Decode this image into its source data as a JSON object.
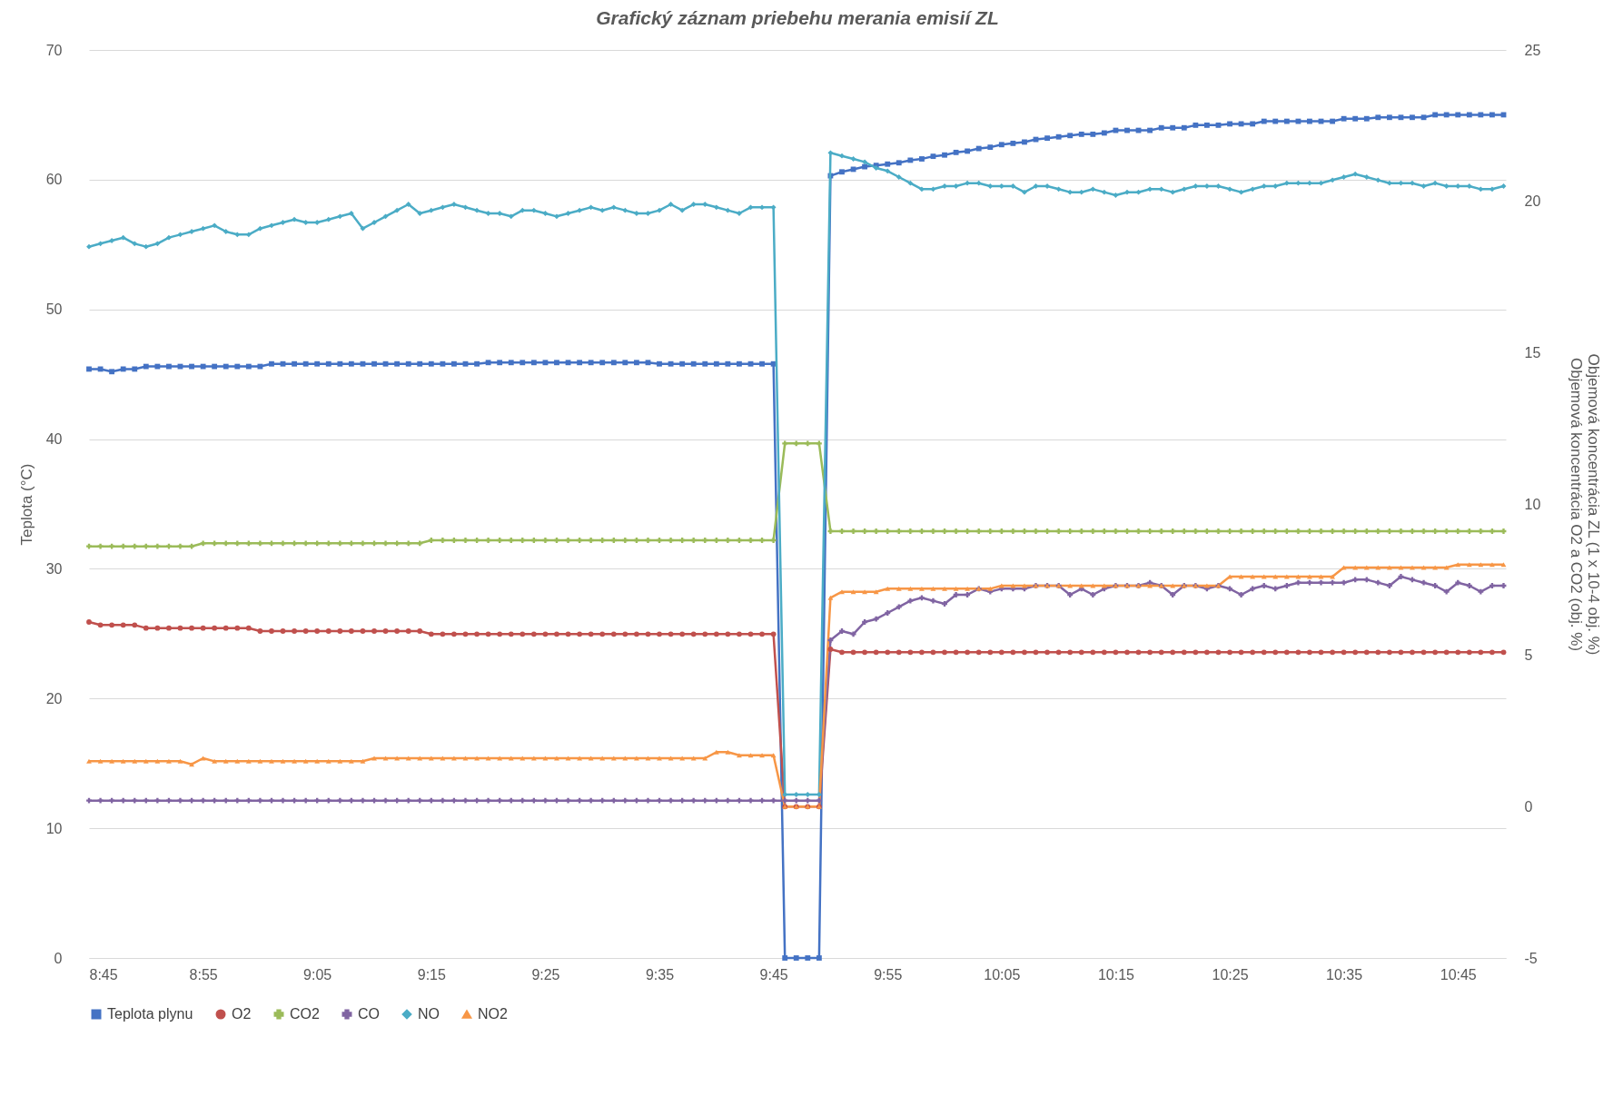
{
  "chart_data": {
    "type": "line",
    "title": "Grafický záznam priebehu merania  emisií ZL",
    "ylabel": "Teplota (°C)",
    "y2label": "Objemová koncentrácia ZL (1 x 10-4 obj. %)\nObjemová koncentrácia  O2 a CO2 (obj. %)",
    "x": [
      8.75,
      8.7667,
      8.7833,
      8.8,
      8.8167,
      8.8333,
      8.85,
      8.8667,
      8.8833,
      8.9,
      8.9167,
      8.9333,
      8.95,
      8.9667,
      8.9833,
      9,
      9.0167,
      9.0333,
      9.05,
      9.0667,
      9.0833,
      9.1,
      9.1167,
      9.1333,
      9.15,
      9.1667,
      9.1833,
      9.2,
      9.2167,
      9.2333,
      9.25,
      9.2667,
      9.2833,
      9.3,
      9.3167,
      9.3333,
      9.35,
      9.3667,
      9.3833,
      9.4,
      9.4167,
      9.4333,
      9.45,
      9.4667,
      9.4833,
      9.5,
      9.5167,
      9.5333,
      9.55,
      9.5667,
      9.5833,
      9.6,
      9.6167,
      9.6333,
      9.65,
      9.6667,
      9.6833,
      9.7,
      9.7167,
      9.7333,
      9.75,
      9.7667,
      9.7833,
      9.8,
      9.8167,
      9.8333,
      9.85,
      9.8667,
      9.8833,
      9.9,
      9.9167,
      9.9333,
      9.95,
      9.9667,
      9.9833,
      10,
      10.0167,
      10.0333,
      10.05,
      10.0667,
      10.0833,
      10.1,
      10.1167,
      10.1333,
      10.15,
      10.1667,
      10.1833,
      10.2,
      10.2167,
      10.2333,
      10.25,
      10.2667,
      10.2833,
      10.3,
      10.3167,
      10.3333,
      10.35,
      10.3667,
      10.3833,
      10.4,
      10.4167,
      10.4333,
      10.45,
      10.4667,
      10.4833,
      10.5,
      10.5167,
      10.5333,
      10.55,
      10.5667,
      10.5833,
      10.6,
      10.6167,
      10.6333,
      10.65,
      10.6667,
      10.6833,
      10.7,
      10.7167,
      10.7333,
      10.75,
      10.7667,
      10.7833,
      10.8,
      10.8167
    ],
    "xlim": [
      8.75,
      10.82
    ],
    "xticks": [
      {
        "value": 8.75,
        "label": "8:45"
      },
      {
        "value": 8.9167,
        "label": "8:55"
      },
      {
        "value": 9.0833,
        "label": "9:05"
      },
      {
        "value": 9.25,
        "label": "9:15"
      },
      {
        "value": 9.4167,
        "label": "9:25"
      },
      {
        "value": 9.5833,
        "label": "9:35"
      },
      {
        "value": 9.75,
        "label": "9:45"
      },
      {
        "value": 9.9167,
        "label": "9:55"
      },
      {
        "value": 10.0833,
        "label": "10:05"
      },
      {
        "value": 10.25,
        "label": "10:15"
      },
      {
        "value": 10.4167,
        "label": "10:25"
      },
      {
        "value": 10.5833,
        "label": "10:35"
      },
      {
        "value": 10.75,
        "label": "10:45"
      }
    ],
    "ylim": [
      0,
      70
    ],
    "yticks": [
      0,
      10,
      20,
      30,
      40,
      50,
      60,
      70
    ],
    "y2lim": [
      -5,
      25
    ],
    "y2ticks": [
      -5,
      0,
      5,
      10,
      15,
      20,
      25
    ],
    "grid": "y",
    "legend": "bottom",
    "series": [
      {
        "name": "Teplota plynu",
        "color": "#4472c4",
        "marker": "square",
        "values": [
          45.4,
          45.4,
          45.2,
          45.4,
          45.4,
          45.6,
          45.6,
          45.6,
          45.6,
          45.6,
          45.6,
          45.6,
          45.6,
          45.6,
          45.6,
          45.6,
          45.8,
          45.8,
          45.8,
          45.8,
          45.8,
          45.8,
          45.8,
          45.8,
          45.8,
          45.8,
          45.8,
          45.8,
          45.8,
          45.8,
          45.8,
          45.8,
          45.8,
          45.8,
          45.8,
          45.9,
          45.9,
          45.9,
          45.9,
          45.9,
          45.9,
          45.9,
          45.9,
          45.9,
          45.9,
          45.9,
          45.9,
          45.9,
          45.9,
          45.9,
          45.8,
          45.8,
          45.8,
          45.8,
          45.8,
          45.8,
          45.8,
          45.8,
          45.8,
          45.8,
          45.8,
          0,
          0,
          0,
          0,
          60.3,
          60.6,
          60.8,
          61.0,
          61.1,
          61.2,
          61.3,
          61.5,
          61.6,
          61.8,
          61.9,
          62.1,
          62.2,
          62.4,
          62.5,
          62.7,
          62.8,
          62.9,
          63.1,
          63.2,
          63.3,
          63.4,
          63.5,
          63.5,
          63.6,
          63.8,
          63.8,
          63.8,
          63.8,
          64.0,
          64.0,
          64.0,
          64.2,
          64.2,
          64.2,
          64.3,
          64.3,
          64.3,
          64.5,
          64.5,
          64.5,
          64.5,
          64.5,
          64.5,
          64.5,
          64.7,
          64.7,
          64.7,
          64.8,
          64.8,
          64.8,
          64.8,
          64.8,
          65.0,
          65.0,
          65.0,
          65.0,
          65.0,
          65.0,
          65.0
        ]
      },
      {
        "name": "O2",
        "color": "#c0504d",
        "marker": "circle",
        "axis": "y2",
        "values": [
          6.1,
          6.0,
          6.0,
          6.0,
          6.0,
          5.9,
          5.9,
          5.9,
          5.9,
          5.9,
          5.9,
          5.9,
          5.9,
          5.9,
          5.9,
          5.8,
          5.8,
          5.8,
          5.8,
          5.8,
          5.8,
          5.8,
          5.8,
          5.8,
          5.8,
          5.8,
          5.8,
          5.8,
          5.8,
          5.8,
          5.7,
          5.7,
          5.7,
          5.7,
          5.7,
          5.7,
          5.7,
          5.7,
          5.7,
          5.7,
          5.7,
          5.7,
          5.7,
          5.7,
          5.7,
          5.7,
          5.7,
          5.7,
          5.7,
          5.7,
          5.7,
          5.7,
          5.7,
          5.7,
          5.7,
          5.7,
          5.7,
          5.7,
          5.7,
          5.7,
          5.7,
          0,
          0,
          0,
          0,
          5.2,
          5.1,
          5.1,
          5.1,
          5.1,
          5.1,
          5.1,
          5.1,
          5.1,
          5.1,
          5.1,
          5.1,
          5.1,
          5.1,
          5.1,
          5.1,
          5.1,
          5.1,
          5.1,
          5.1,
          5.1,
          5.1,
          5.1,
          5.1,
          5.1,
          5.1,
          5.1,
          5.1,
          5.1,
          5.1,
          5.1,
          5.1,
          5.1,
          5.1,
          5.1,
          5.1,
          5.1,
          5.1,
          5.1,
          5.1,
          5.1,
          5.1,
          5.1,
          5.1,
          5.1,
          5.1,
          5.1,
          5.1,
          5.1,
          5.1,
          5.1,
          5.1,
          5.1,
          5.1,
          5.1,
          5.1,
          5.1,
          5.1,
          5.1,
          5.1
        ]
      },
      {
        "name": "CO2",
        "color": "#9bbb59",
        "marker": "cross",
        "axis": "y2",
        "values": [
          8.6,
          8.6,
          8.6,
          8.6,
          8.6,
          8.6,
          8.6,
          8.6,
          8.6,
          8.6,
          8.7,
          8.7,
          8.7,
          8.7,
          8.7,
          8.7,
          8.7,
          8.7,
          8.7,
          8.7,
          8.7,
          8.7,
          8.7,
          8.7,
          8.7,
          8.7,
          8.7,
          8.7,
          8.7,
          8.7,
          8.8,
          8.8,
          8.8,
          8.8,
          8.8,
          8.8,
          8.8,
          8.8,
          8.8,
          8.8,
          8.8,
          8.8,
          8.8,
          8.8,
          8.8,
          8.8,
          8.8,
          8.8,
          8.8,
          8.8,
          8.8,
          8.8,
          8.8,
          8.8,
          8.8,
          8.8,
          8.8,
          8.8,
          8.8,
          8.8,
          8.8,
          12.0,
          12.0,
          12.0,
          12.0,
          9.1,
          9.1,
          9.1,
          9.1,
          9.1,
          9.1,
          9.1,
          9.1,
          9.1,
          9.1,
          9.1,
          9.1,
          9.1,
          9.1,
          9.1,
          9.1,
          9.1,
          9.1,
          9.1,
          9.1,
          9.1,
          9.1,
          9.1,
          9.1,
          9.1,
          9.1,
          9.1,
          9.1,
          9.1,
          9.1,
          9.1,
          9.1,
          9.1,
          9.1,
          9.1,
          9.1,
          9.1,
          9.1,
          9.1,
          9.1,
          9.1,
          9.1,
          9.1,
          9.1,
          9.1,
          9.1,
          9.1,
          9.1,
          9.1,
          9.1,
          9.1,
          9.1,
          9.1,
          9.1,
          9.1,
          9.1,
          9.1,
          9.1,
          9.1,
          9.1
        ]
      },
      {
        "name": "CO",
        "color": "#8064a2",
        "marker": "cross",
        "axis": "y2",
        "values": [
          0.2,
          0.2,
          0.2,
          0.2,
          0.2,
          0.2,
          0.2,
          0.2,
          0.2,
          0.2,
          0.2,
          0.2,
          0.2,
          0.2,
          0.2,
          0.2,
          0.2,
          0.2,
          0.2,
          0.2,
          0.2,
          0.2,
          0.2,
          0.2,
          0.2,
          0.2,
          0.2,
          0.2,
          0.2,
          0.2,
          0.2,
          0.2,
          0.2,
          0.2,
          0.2,
          0.2,
          0.2,
          0.2,
          0.2,
          0.2,
          0.2,
          0.2,
          0.2,
          0.2,
          0.2,
          0.2,
          0.2,
          0.2,
          0.2,
          0.2,
          0.2,
          0.2,
          0.2,
          0.2,
          0.2,
          0.2,
          0.2,
          0.2,
          0.2,
          0.2,
          0.2,
          0.2,
          0.2,
          0.2,
          0.2,
          5.5,
          5.8,
          5.7,
          6.1,
          6.2,
          6.4,
          6.6,
          6.8,
          6.9,
          6.8,
          6.7,
          7.0,
          7.0,
          7.2,
          7.1,
          7.2,
          7.2,
          7.2,
          7.3,
          7.3,
          7.3,
          7.0,
          7.2,
          7.0,
          7.2,
          7.3,
          7.3,
          7.3,
          7.4,
          7.3,
          7.0,
          7.3,
          7.3,
          7.2,
          7.3,
          7.2,
          7.0,
          7.2,
          7.3,
          7.2,
          7.3,
          7.4,
          7.4,
          7.4,
          7.4,
          7.4,
          7.5,
          7.5,
          7.4,
          7.3,
          7.6,
          7.5,
          7.4,
          7.3,
          7.1,
          7.4,
          7.3,
          7.1,
          7.3,
          7.3
        ]
      },
      {
        "name": "NO",
        "color": "#4bacc6",
        "marker": "diamond",
        "axis": "y2",
        "values": [
          18.5,
          18.6,
          18.7,
          18.8,
          18.6,
          18.5,
          18.6,
          18.8,
          18.9,
          19.0,
          19.1,
          19.2,
          19.0,
          18.9,
          18.9,
          19.1,
          19.2,
          19.3,
          19.4,
          19.3,
          19.3,
          19.4,
          19.5,
          19.6,
          19.1,
          19.3,
          19.5,
          19.7,
          19.9,
          19.6,
          19.7,
          19.8,
          19.9,
          19.8,
          19.7,
          19.6,
          19.6,
          19.5,
          19.7,
          19.7,
          19.6,
          19.5,
          19.6,
          19.7,
          19.8,
          19.7,
          19.8,
          19.7,
          19.6,
          19.6,
          19.7,
          19.9,
          19.7,
          19.9,
          19.9,
          19.8,
          19.7,
          19.6,
          19.8,
          19.8,
          19.8,
          0.4,
          0.4,
          0.4,
          0.4,
          21.6,
          21.5,
          21.4,
          21.3,
          21.1,
          21.0,
          20.8,
          20.6,
          20.4,
          20.4,
          20.5,
          20.5,
          20.6,
          20.6,
          20.5,
          20.5,
          20.5,
          20.3,
          20.5,
          20.5,
          20.4,
          20.3,
          20.3,
          20.4,
          20.3,
          20.2,
          20.3,
          20.3,
          20.4,
          20.4,
          20.3,
          20.4,
          20.5,
          20.5,
          20.5,
          20.4,
          20.3,
          20.4,
          20.5,
          20.5,
          20.6,
          20.6,
          20.6,
          20.6,
          20.7,
          20.8,
          20.9,
          20.8,
          20.7,
          20.6,
          20.6,
          20.6,
          20.5,
          20.6,
          20.5,
          20.5,
          20.5,
          20.4,
          20.4,
          20.5
        ]
      },
      {
        "name": "NO2",
        "color": "#f79646",
        "marker": "triangle",
        "axis": "y2",
        "values": [
          1.5,
          1.5,
          1.5,
          1.5,
          1.5,
          1.5,
          1.5,
          1.5,
          1.5,
          1.4,
          1.6,
          1.5,
          1.5,
          1.5,
          1.5,
          1.5,
          1.5,
          1.5,
          1.5,
          1.5,
          1.5,
          1.5,
          1.5,
          1.5,
          1.5,
          1.6,
          1.6,
          1.6,
          1.6,
          1.6,
          1.6,
          1.6,
          1.6,
          1.6,
          1.6,
          1.6,
          1.6,
          1.6,
          1.6,
          1.6,
          1.6,
          1.6,
          1.6,
          1.6,
          1.6,
          1.6,
          1.6,
          1.6,
          1.6,
          1.6,
          1.6,
          1.6,
          1.6,
          1.6,
          1.6,
          1.8,
          1.8,
          1.7,
          1.7,
          1.7,
          1.7,
          0,
          0,
          0,
          0,
          6.9,
          7.1,
          7.1,
          7.1,
          7.1,
          7.2,
          7.2,
          7.2,
          7.2,
          7.2,
          7.2,
          7.2,
          7.2,
          7.2,
          7.2,
          7.3,
          7.3,
          7.3,
          7.3,
          7.3,
          7.3,
          7.3,
          7.3,
          7.3,
          7.3,
          7.3,
          7.3,
          7.3,
          7.3,
          7.3,
          7.3,
          7.3,
          7.3,
          7.3,
          7.3,
          7.6,
          7.6,
          7.6,
          7.6,
          7.6,
          7.6,
          7.6,
          7.6,
          7.6,
          7.6,
          7.9,
          7.9,
          7.9,
          7.9,
          7.9,
          7.9,
          7.9,
          7.9,
          7.9,
          7.9,
          8.0,
          8.0,
          8.0,
          8.0,
          8.0
        ]
      }
    ]
  }
}
